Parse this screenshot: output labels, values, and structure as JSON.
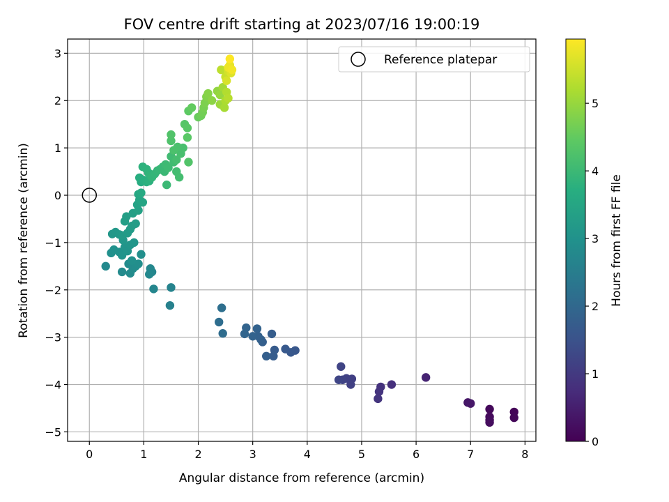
{
  "chart_data": {
    "type": "scatter",
    "title": "FOV centre drift starting at 2023/07/16 19:00:19",
    "xlabel": "Angular distance from reference (arcmin)",
    "ylabel": "Rotation from reference (arcmin)",
    "xlim": [
      -0.4,
      8.2
    ],
    "ylim": [
      -5.2,
      3.3
    ],
    "xticks": [
      0,
      1,
      2,
      3,
      4,
      5,
      6,
      7,
      8
    ],
    "yticks": [
      -5,
      -4,
      -3,
      -2,
      -1,
      0,
      1,
      2,
      3
    ],
    "grid": true,
    "legend": {
      "position": "top-right",
      "entries": [
        "Reference platepar"
      ]
    },
    "reference_point": {
      "x": 0,
      "y": 0,
      "label": "Reference platepar"
    },
    "colorbar": {
      "label": "Hours from first FF file",
      "range": [
        0,
        5.95
      ],
      "ticks": [
        0,
        1,
        2,
        3,
        4,
        5
      ],
      "colormap": "viridis"
    },
    "points": [
      {
        "x": 7.8,
        "y": -4.58,
        "c": 0.05
      },
      {
        "x": 7.8,
        "y": -4.7,
        "c": 0.08
      },
      {
        "x": 7.35,
        "y": -4.52,
        "c": 0.12
      },
      {
        "x": 7.35,
        "y": -4.68,
        "c": 0.15
      },
      {
        "x": 7.35,
        "y": -4.75,
        "c": 0.18
      },
      {
        "x": 7.35,
        "y": -4.8,
        "c": 0.2
      },
      {
        "x": 6.95,
        "y": -4.38,
        "c": 0.35
      },
      {
        "x": 7.0,
        "y": -4.4,
        "c": 0.38
      },
      {
        "x": 6.18,
        "y": -3.85,
        "c": 0.6
      },
      {
        "x": 5.55,
        "y": -4.0,
        "c": 0.8
      },
      {
        "x": 5.35,
        "y": -4.05,
        "c": 0.85
      },
      {
        "x": 5.32,
        "y": -4.15,
        "c": 0.88
      },
      {
        "x": 5.3,
        "y": -4.3,
        "c": 0.9
      },
      {
        "x": 4.82,
        "y": -3.88,
        "c": 1.1
      },
      {
        "x": 4.8,
        "y": -4.0,
        "c": 1.12
      },
      {
        "x": 4.72,
        "y": -3.87,
        "c": 1.15
      },
      {
        "x": 4.65,
        "y": -3.9,
        "c": 1.18
      },
      {
        "x": 4.62,
        "y": -3.62,
        "c": 1.2
      },
      {
        "x": 4.58,
        "y": -3.9,
        "c": 1.22
      },
      {
        "x": 3.78,
        "y": -3.28,
        "c": 1.6
      },
      {
        "x": 3.7,
        "y": -3.32,
        "c": 1.62
      },
      {
        "x": 3.6,
        "y": -3.25,
        "c": 1.65
      },
      {
        "x": 3.4,
        "y": -3.27,
        "c": 1.7
      },
      {
        "x": 3.38,
        "y": -3.4,
        "c": 1.72
      },
      {
        "x": 3.35,
        "y": -2.93,
        "c": 1.75
      },
      {
        "x": 3.25,
        "y": -3.4,
        "c": 1.78
      },
      {
        "x": 3.18,
        "y": -3.1,
        "c": 1.8
      },
      {
        "x": 3.15,
        "y": -3.05,
        "c": 1.82
      },
      {
        "x": 3.1,
        "y": -2.98,
        "c": 1.84
      },
      {
        "x": 3.08,
        "y": -2.82,
        "c": 1.86
      },
      {
        "x": 3.0,
        "y": -2.98,
        "c": 1.88
      },
      {
        "x": 2.88,
        "y": -2.8,
        "c": 1.9
      },
      {
        "x": 2.85,
        "y": -2.93,
        "c": 1.92
      },
      {
        "x": 2.45,
        "y": -2.92,
        "c": 2.1
      },
      {
        "x": 2.43,
        "y": -2.38,
        "c": 2.15
      },
      {
        "x": 2.38,
        "y": -2.68,
        "c": 2.12
      },
      {
        "x": 1.48,
        "y": -2.33,
        "c": 2.6
      },
      {
        "x": 1.5,
        "y": -1.95,
        "c": 2.65
      },
      {
        "x": 1.18,
        "y": -1.98,
        "c": 2.7
      },
      {
        "x": 1.15,
        "y": -1.62,
        "c": 2.72
      },
      {
        "x": 1.12,
        "y": -1.55,
        "c": 2.74
      },
      {
        "x": 1.1,
        "y": -1.67,
        "c": 2.76
      },
      {
        "x": 0.3,
        "y": -1.5,
        "c": 2.78
      },
      {
        "x": 0.6,
        "y": -1.62,
        "c": 2.8
      },
      {
        "x": 0.75,
        "y": -1.65,
        "c": 2.82
      },
      {
        "x": 0.72,
        "y": -1.45,
        "c": 2.84
      },
      {
        "x": 0.8,
        "y": -1.55,
        "c": 2.86
      },
      {
        "x": 0.85,
        "y": -1.5,
        "c": 2.88
      },
      {
        "x": 0.9,
        "y": -1.45,
        "c": 2.9
      },
      {
        "x": 0.95,
        "y": -1.25,
        "c": 2.92
      },
      {
        "x": 0.78,
        "y": -1.38,
        "c": 2.94
      },
      {
        "x": 0.4,
        "y": -1.22,
        "c": 2.96
      },
      {
        "x": 0.45,
        "y": -1.15,
        "c": 2.98
      },
      {
        "x": 0.55,
        "y": -1.2,
        "c": 3.0
      },
      {
        "x": 0.6,
        "y": -1.27,
        "c": 3.02
      },
      {
        "x": 0.65,
        "y": -1.1,
        "c": 3.04
      },
      {
        "x": 0.7,
        "y": -1.18,
        "c": 3.06
      },
      {
        "x": 0.75,
        "y": -1.05,
        "c": 3.08
      },
      {
        "x": 0.82,
        "y": -1.0,
        "c": 3.1
      },
      {
        "x": 0.62,
        "y": -0.95,
        "c": 3.12
      },
      {
        "x": 0.42,
        "y": -0.82,
        "c": 3.14
      },
      {
        "x": 0.48,
        "y": -0.78,
        "c": 3.16
      },
      {
        "x": 0.55,
        "y": -0.83,
        "c": 3.18
      },
      {
        "x": 0.6,
        "y": -0.85,
        "c": 3.2
      },
      {
        "x": 0.7,
        "y": -0.8,
        "c": 3.22
      },
      {
        "x": 0.75,
        "y": -0.72,
        "c": 3.24
      },
      {
        "x": 0.78,
        "y": -0.65,
        "c": 3.26
      },
      {
        "x": 0.85,
        "y": -0.6,
        "c": 3.28
      },
      {
        "x": 0.65,
        "y": -0.55,
        "c": 3.3
      },
      {
        "x": 0.68,
        "y": -0.45,
        "c": 3.32
      },
      {
        "x": 0.8,
        "y": -0.38,
        "c": 3.34
      },
      {
        "x": 0.9,
        "y": -0.32,
        "c": 3.38
      },
      {
        "x": 0.88,
        "y": -0.2,
        "c": 3.42
      },
      {
        "x": 0.92,
        "y": -0.1,
        "c": 3.46
      },
      {
        "x": 0.98,
        "y": -0.15,
        "c": 3.5
      },
      {
        "x": 0.9,
        "y": 0.02,
        "c": 3.55
      },
      {
        "x": 0.95,
        "y": 0.05,
        "c": 3.6
      },
      {
        "x": 0.95,
        "y": 0.28,
        "c": 3.65
      },
      {
        "x": 0.92,
        "y": 0.37,
        "c": 3.7
      },
      {
        "x": 1.0,
        "y": 0.32,
        "c": 3.72
      },
      {
        "x": 1.05,
        "y": 0.28,
        "c": 3.75
      },
      {
        "x": 1.1,
        "y": 0.3,
        "c": 3.78
      },
      {
        "x": 0.98,
        "y": 0.6,
        "c": 3.8
      },
      {
        "x": 1.05,
        "y": 0.55,
        "c": 3.82
      },
      {
        "x": 1.08,
        "y": 0.48,
        "c": 3.84
      },
      {
        "x": 1.12,
        "y": 0.42,
        "c": 3.86
      },
      {
        "x": 1.15,
        "y": 0.38,
        "c": 3.88
      },
      {
        "x": 1.2,
        "y": 0.45,
        "c": 3.9
      },
      {
        "x": 1.25,
        "y": 0.52,
        "c": 3.92
      },
      {
        "x": 1.3,
        "y": 0.55,
        "c": 3.94
      },
      {
        "x": 1.35,
        "y": 0.6,
        "c": 3.96
      },
      {
        "x": 1.38,
        "y": 0.5,
        "c": 3.98
      },
      {
        "x": 1.42,
        "y": 0.22,
        "c": 4.0
      },
      {
        "x": 1.4,
        "y": 0.65,
        "c": 4.02
      },
      {
        "x": 1.45,
        "y": 0.58,
        "c": 4.04
      },
      {
        "x": 1.5,
        "y": 0.82,
        "c": 4.06
      },
      {
        "x": 1.55,
        "y": 0.7,
        "c": 4.08
      },
      {
        "x": 1.6,
        "y": 0.5,
        "c": 4.1
      },
      {
        "x": 1.65,
        "y": 0.38,
        "c": 4.12
      },
      {
        "x": 1.6,
        "y": 0.75,
        "c": 4.14
      },
      {
        "x": 1.68,
        "y": 0.88,
        "c": 4.16
      },
      {
        "x": 1.72,
        "y": 1.0,
        "c": 4.18
      },
      {
        "x": 1.62,
        "y": 1.02,
        "c": 4.2
      },
      {
        "x": 1.55,
        "y": 0.95,
        "c": 4.22
      },
      {
        "x": 1.5,
        "y": 1.15,
        "c": 4.25
      },
      {
        "x": 1.5,
        "y": 1.28,
        "c": 4.28
      },
      {
        "x": 1.82,
        "y": 0.7,
        "c": 4.3
      },
      {
        "x": 1.75,
        "y": 1.5,
        "c": 4.35
      },
      {
        "x": 1.8,
        "y": 1.42,
        "c": 4.38
      },
      {
        "x": 1.8,
        "y": 1.22,
        "c": 4.4
      },
      {
        "x": 1.82,
        "y": 1.78,
        "c": 4.45
      },
      {
        "x": 1.88,
        "y": 1.85,
        "c": 4.5
      },
      {
        "x": 2.0,
        "y": 1.65,
        "c": 4.55
      },
      {
        "x": 2.05,
        "y": 1.68,
        "c": 4.6
      },
      {
        "x": 2.08,
        "y": 1.75,
        "c": 4.65
      },
      {
        "x": 2.1,
        "y": 1.85,
        "c": 4.7
      },
      {
        "x": 2.12,
        "y": 1.95,
        "c": 4.75
      },
      {
        "x": 2.15,
        "y": 2.08,
        "c": 4.8
      },
      {
        "x": 2.18,
        "y": 2.15,
        "c": 4.85
      },
      {
        "x": 2.25,
        "y": 2.0,
        "c": 4.9
      },
      {
        "x": 2.35,
        "y": 2.2,
        "c": 4.95
      },
      {
        "x": 2.4,
        "y": 2.12,
        "c": 5.0
      },
      {
        "x": 2.4,
        "y": 1.92,
        "c": 5.05
      },
      {
        "x": 2.45,
        "y": 2.28,
        "c": 5.1
      },
      {
        "x": 2.48,
        "y": 1.85,
        "c": 5.15
      },
      {
        "x": 2.5,
        "y": 2.0,
        "c": 5.2
      },
      {
        "x": 2.52,
        "y": 2.18,
        "c": 5.25
      },
      {
        "x": 2.55,
        "y": 2.05,
        "c": 5.3
      },
      {
        "x": 2.42,
        "y": 2.65,
        "c": 5.35
      },
      {
        "x": 2.5,
        "y": 2.5,
        "c": 5.45
      },
      {
        "x": 2.55,
        "y": 2.62,
        "c": 5.55
      },
      {
        "x": 2.52,
        "y": 2.42,
        "c": 5.6
      },
      {
        "x": 2.6,
        "y": 2.58,
        "c": 5.65
      },
      {
        "x": 2.58,
        "y": 2.75,
        "c": 5.75
      },
      {
        "x": 2.55,
        "y": 2.7,
        "c": 5.8
      },
      {
        "x": 2.62,
        "y": 2.65,
        "c": 5.85
      },
      {
        "x": 2.58,
        "y": 2.88,
        "c": 5.95
      }
    ]
  }
}
